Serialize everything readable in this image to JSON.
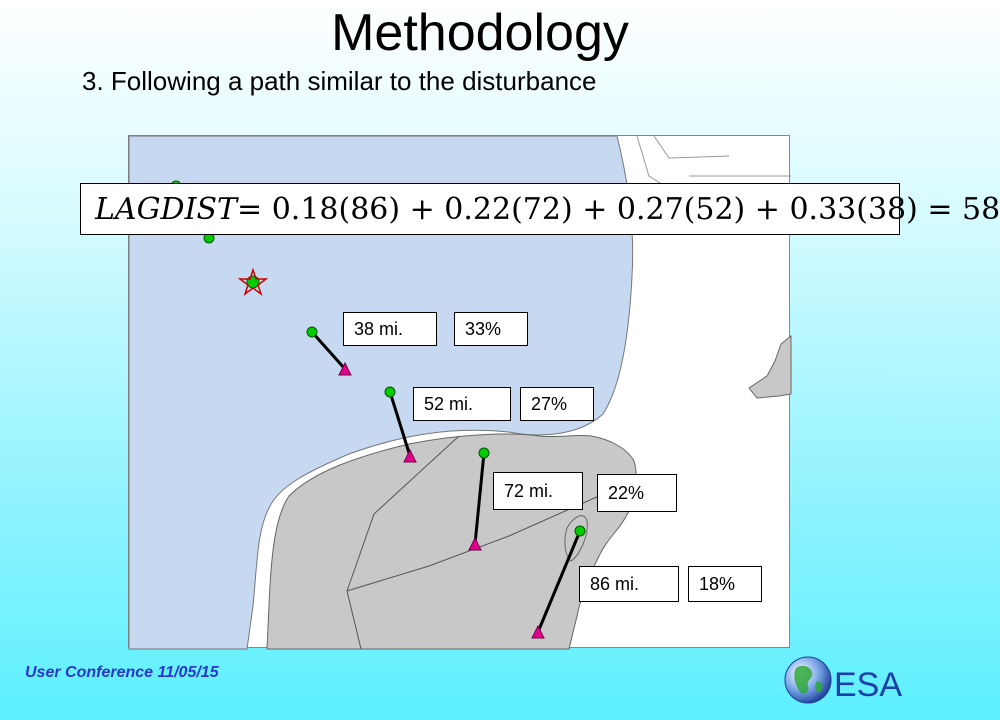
{
  "title": "Methodology",
  "subtitle": "3.  Following a path similar to the disturbance",
  "equation": {
    "lhs": "LAGDIST",
    "rhs": " = 0.18(86) + 0.22(72) + 0.27(52) + 0.33(38) = 58"
  },
  "labels": [
    {
      "distance": "38 mi.",
      "weight": "33%"
    },
    {
      "distance": "52 mi.",
      "weight": "27%"
    },
    {
      "distance": "72 mi.",
      "weight": "22%"
    },
    {
      "distance": "86 mi.",
      "weight": "18%"
    }
  ],
  "footer": "User Conference 11/05/15",
  "logo_text": "ESA",
  "colors": {
    "water": "#c6d9f1",
    "land": "#c8c8c8",
    "point_green": "#00cc00",
    "point_triangle": "#e0008c",
    "footer": "#2a37c8",
    "logo": "#1f3fa8"
  },
  "icons": [
    "green-circle-icon",
    "magenta-triangle-icon",
    "star-icon",
    "globe-icon"
  ]
}
